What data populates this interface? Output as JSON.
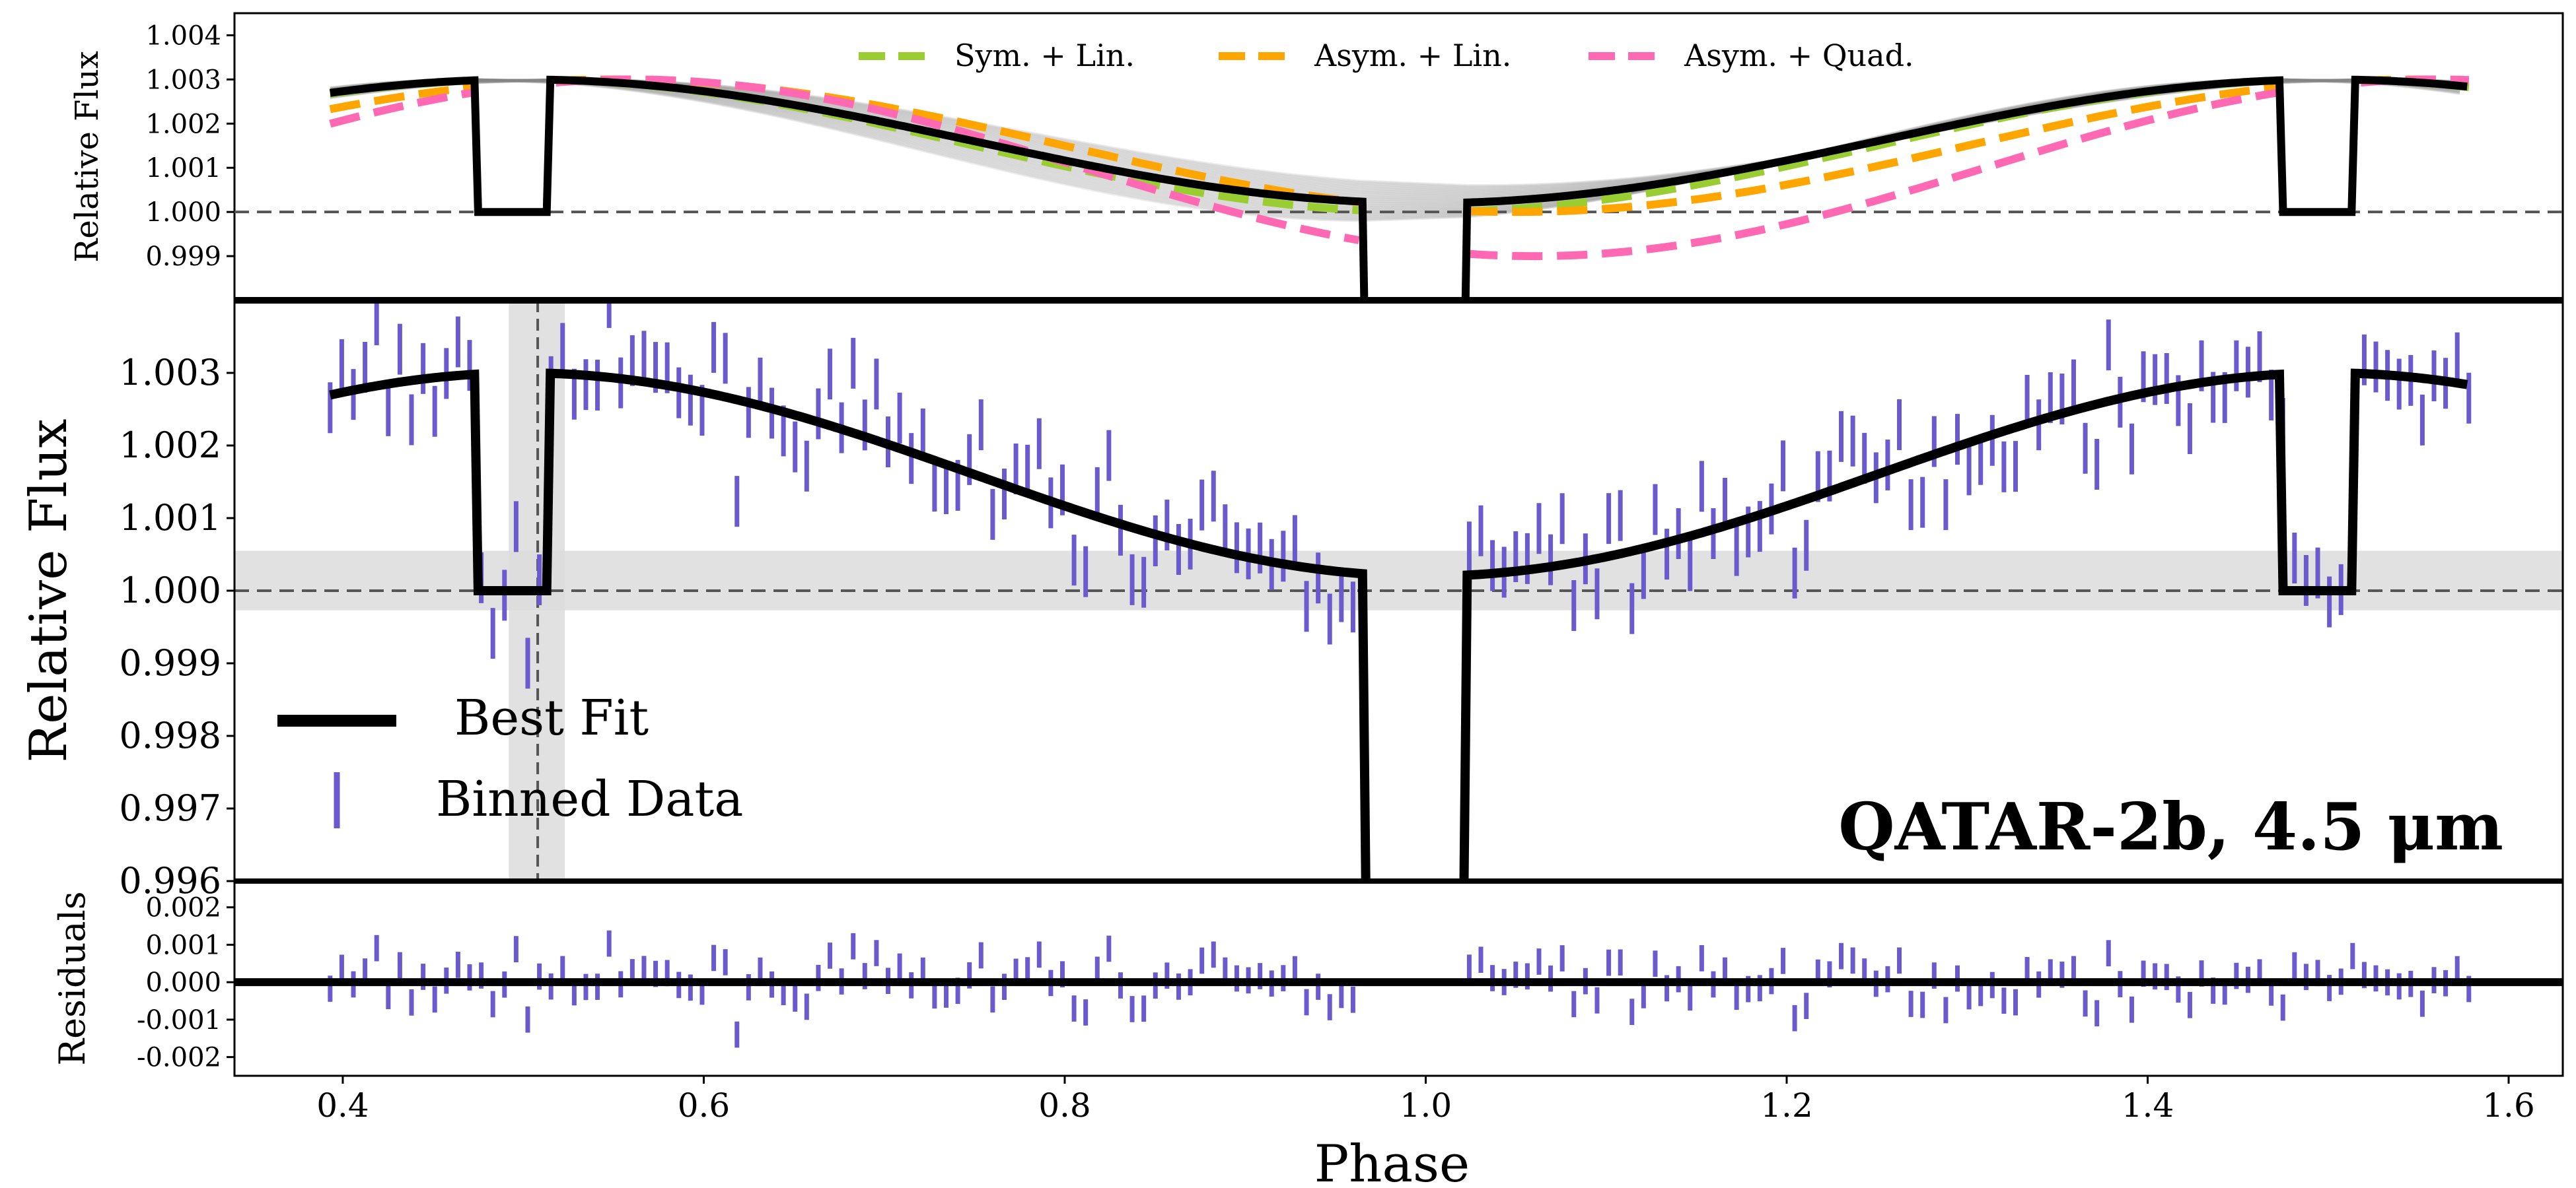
{
  "figure": {
    "title": "QATAR-2b, 4.5 μm"
  },
  "chart_data": [
    {
      "panel": "top",
      "type": "line",
      "ylabel": "Relative Flux",
      "ylim": [
        0.998,
        1.0045
      ],
      "yticks": [
        0.999,
        1.0,
        1.001,
        1.002,
        1.003,
        1.004
      ],
      "ytick_labels": [
        "0.999",
        "1.000",
        "1.001",
        "1.002",
        "1.003",
        "1.004"
      ],
      "xlim": [
        0.34,
        1.63
      ],
      "reference_line": 1.0,
      "legend": {
        "placement": "top-center",
        "entries": [
          {
            "label": "Sym. + Lin.",
            "color": "#9acd32",
            "style": "dashed"
          },
          {
            "label": "Asym. + Lin.",
            "color": "#ffa500",
            "style": "dashed"
          },
          {
            "label": "Asym. + Quad.",
            "color": "#ff69b4",
            "style": "dashed"
          }
        ]
      },
      "model_params": {
        "sym_lin": {
          "center": 1.0,
          "amplitude": 0.0014,
          "min": 1.0,
          "phase_offset": 0.0,
          "color": "#9acd32"
        },
        "asym_lin": {
          "center": 1.0,
          "amplitude": 0.00165,
          "min": 1.0,
          "phase_offset": 0.05,
          "color": "#ffa500"
        },
        "asym_quad": {
          "center": 1.0,
          "amplitude": 0.0021,
          "min": 0.999,
          "phase_offset": 0.06,
          "color": "#ff69b4"
        },
        "best_fit": {
          "center": 1.0,
          "amplitude": 0.0014,
          "min": 1.0002,
          "phase_offset": 0.0,
          "color": "#000000"
        }
      },
      "posterior_samples": 40
    },
    {
      "panel": "middle",
      "type": "scatter",
      "ylabel": "Relative Flux",
      "ylim": [
        0.996,
        1.004
      ],
      "yticks": [
        0.996,
        0.997,
        0.998,
        0.999,
        1.0,
        1.001,
        1.002,
        1.003
      ],
      "ytick_labels": [
        "0.996",
        "0.997",
        "0.998",
        "0.999",
        "1.000",
        "1.001",
        "1.002",
        "1.003"
      ],
      "xlim": [
        0.34,
        1.63
      ],
      "reference_line": 1.0,
      "band": {
        "ymin": 0.99973,
        "ymax": 1.00055
      },
      "vband": {
        "xmin": 0.492,
        "xmax": 0.523,
        "center": 0.508
      },
      "legend": {
        "placement": "lower-left",
        "entries": [
          {
            "label": "Best Fit",
            "color": "#000000",
            "style": "line"
          },
          {
            "label": "Binned Data",
            "color": "#6a5acd",
            "style": "errorbar"
          }
        ]
      },
      "data_color": "#6a5acd",
      "errorbar_halfwidth": 0.00035,
      "x_start": 0.393,
      "x_step": 0.00644,
      "points": 185
    },
    {
      "panel": "bottom",
      "type": "scatter",
      "ylabel": "Residuals",
      "xlabel": "Phase",
      "ylim": [
        -0.0025,
        0.0027
      ],
      "yticks": [
        -0.002,
        -0.001,
        0.0,
        0.001,
        0.002
      ],
      "ytick_labels": [
        "-0.002",
        "-0.001",
        "0.000",
        "0.001",
        "0.002"
      ],
      "xlim": [
        0.34,
        1.63
      ],
      "xticks": [
        0.4,
        0.6,
        0.8,
        1.0,
        1.2,
        1.4,
        1.6
      ],
      "xtick_labels": [
        "0.4",
        "0.6",
        "0.8",
        "1.0",
        "1.2",
        "1.4",
        "1.6"
      ],
      "reference_line": 0.0
    }
  ]
}
